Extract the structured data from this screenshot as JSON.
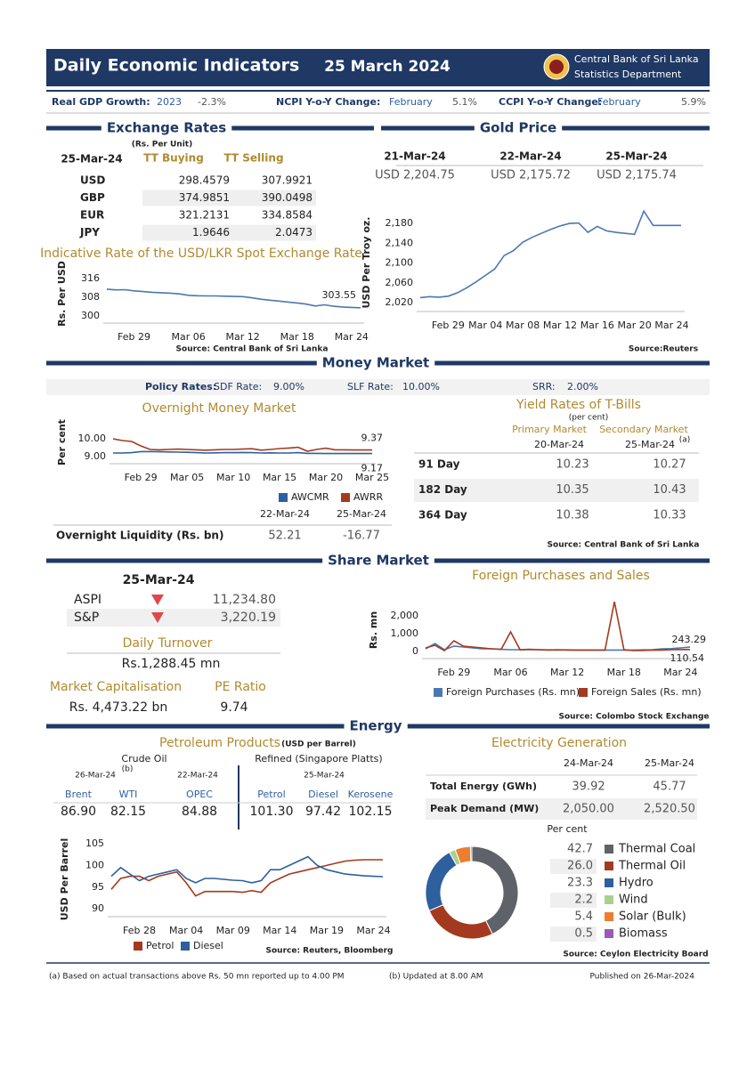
{
  "header": {
    "title": "Daily Economic Indicators",
    "date": "25 March 2024",
    "org": [
      "Central Bank of Sri Lanka",
      "Statistics Department"
    ]
  },
  "summary": [
    {
      "label": "Real GDP Growth:",
      "period": "2023",
      "value": "-2.3%"
    },
    {
      "label": "NCPI Y-o-Y Change:",
      "period": "February",
      "value": "5.1%"
    },
    {
      "label": "CCPI Y-o-Y Change:",
      "period": "February",
      "value": "5.9%"
    }
  ],
  "exchange": {
    "title": "Exchange Rates",
    "unit": "(Rs. Per Unit)",
    "date": "25-Mar-24",
    "columns": [
      "TT Buying",
      "TT Selling"
    ],
    "rows": [
      [
        "USD",
        "298.4579",
        "307.9921"
      ],
      [
        "GBP",
        "374.9851",
        "390.0498"
      ],
      [
        "EUR",
        "321.2131",
        "334.8584"
      ],
      [
        "JPY",
        "1.9646",
        "2.0473"
      ]
    ],
    "chart": {
      "type": "line",
      "title": "Indicative Rate of the USD/LKR Spot Exchange Rate",
      "y_label": "Rs. Per USD",
      "categories": [
        null,
        null,
        null,
        "Feb 29",
        null,
        null,
        null,
        null,
        null,
        "Mar 06",
        null,
        null,
        null,
        null,
        null,
        "Mar 12",
        null,
        null,
        null,
        null,
        null,
        "Mar 18",
        null,
        null,
        null,
        null,
        null,
        "Mar 24",
        null
      ],
      "series": [
        {
          "color": "#4a78b0",
          "values": [
            311.5,
            311.2,
            311.3,
            310.8,
            310.5,
            310.2,
            310.0,
            309.8,
            309.5,
            308.9,
            308.7,
            308.6,
            308.6,
            308.5,
            308.4,
            308.3,
            307.8,
            307.2,
            306.8,
            306.4,
            306.0,
            305.6,
            305.1,
            304.3,
            304.8,
            304.2,
            303.9,
            303.7,
            303.55
          ]
        }
      ],
      "ylim": [
        297,
        321
      ],
      "yticks": [
        300,
        308,
        316
      ],
      "source": "Source: Central Bank of Sri Lanka"
    }
  },
  "gold": {
    "title": "Gold Price",
    "dates": [
      "21-Mar-24",
      "22-Mar-24",
      "25-Mar-24"
    ],
    "values": [
      "USD 2,204.75",
      "USD 2,175.72",
      "USD 2,175.74"
    ],
    "chart": {
      "type": "line",
      "y_label": "USD Per Troy oz.",
      "categories": [
        null,
        null,
        null,
        "Feb 29",
        null,
        null,
        null,
        "Mar 04",
        null,
        null,
        null,
        "Mar 08",
        null,
        null,
        null,
        "Mar 12",
        null,
        null,
        null,
        "Mar 16",
        null,
        null,
        null,
        "Mar 20",
        null,
        null,
        null,
        "Mar 24",
        null
      ],
      "series": [
        {
          "color": "#4a78b0",
          "values": [
            2030,
            2032,
            2031,
            2033,
            2040,
            2050,
            2062,
            2075,
            2088,
            2115,
            2125,
            2142,
            2152,
            2160,
            2168,
            2175,
            2180,
            2181,
            2162,
            2174,
            2165,
            2162,
            2160,
            2158,
            2205,
            2176,
            2176,
            2176,
            2176
          ]
        }
      ],
      "ylim": [
        2002,
        2209
      ],
      "yticks": [
        {
          "value": 2020,
          "label": "2,020"
        },
        {
          "value": 2060,
          "label": "2,060"
        },
        {
          "value": 2100,
          "label": "2,100"
        },
        {
          "value": 2140,
          "label": "2,140"
        },
        {
          "value": 2180,
          "label": "2,180"
        }
      ],
      "source": "Source:Reuters"
    }
  },
  "money": {
    "title": "Money Market",
    "policy": {
      "label": "Policy Rates:",
      "items": [
        [
          "SDF Rate:",
          "9.00%"
        ],
        [
          "SLF Rate:",
          "10.00%"
        ],
        [
          "SRR:",
          "2.00%"
        ]
      ]
    },
    "overnight": {
      "chart": {
        "type": "line",
        "title": "Overnight Money Market",
        "y_label": "Per cent",
        "categories": [
          null,
          null,
          null,
          "Feb 29",
          null,
          null,
          null,
          null,
          "Mar 05",
          null,
          null,
          null,
          null,
          "Mar 10",
          null,
          null,
          null,
          null,
          "Mar 15",
          null,
          null,
          null,
          null,
          "Mar 20",
          null,
          null,
          null,
          null,
          "Mar 25"
        ],
        "series": [
          {
            "name": "AWCMR",
            "color": "#2e5f9e",
            "values": [
              9.2,
              9.2,
              9.22,
              9.28,
              9.28,
              9.27,
              9.26,
              9.25,
              9.24,
              9.22,
              9.2,
              9.21,
              9.22,
              9.22,
              9.23,
              9.22,
              9.2,
              9.21,
              9.2,
              9.2,
              9.22,
              9.18,
              9.18,
              9.17,
              9.17,
              9.17,
              9.17,
              9.17,
              9.17
            ]
          },
          {
            "name": "AWRR",
            "color": "#a33a1f",
            "values": [
              10.0,
              9.9,
              9.85,
              9.6,
              9.4,
              9.38,
              9.4,
              9.42,
              9.4,
              9.38,
              9.36,
              9.38,
              9.4,
              9.4,
              9.42,
              9.44,
              9.36,
              9.4,
              9.45,
              9.48,
              9.52,
              9.3,
              9.4,
              9.47,
              9.38,
              9.38,
              9.37,
              9.37,
              9.37
            ]
          }
        ],
        "ylim": [
          8.6,
          10.6
        ],
        "yticks": [
          {
            "value": 9,
            "label": "9.00"
          },
          {
            "value": 10,
            "label": "10.00"
          }
        ]
      },
      "liquidity": {
        "dates": [
          "22-Mar-24",
          "25-Mar-24"
        ],
        "label": "Overnight Liquidity (Rs. bn)",
        "values": [
          "52.21",
          "-16.77"
        ]
      }
    },
    "tbills": {
      "title": "Yield Rates of T-Bills",
      "unit": "(per cent)",
      "markets": [
        "Primary Market",
        "Secondary Market"
      ],
      "dates": [
        "20-Mar-24",
        "25-Mar-24"
      ],
      "note": "(a)",
      "rows": [
        [
          "91 Day",
          "10.23",
          "10.27"
        ],
        [
          "182 Day",
          "10.35",
          "10.43"
        ],
        [
          "364 Day",
          "10.38",
          "10.33"
        ]
      ],
      "source": "Source: Central Bank of Sri Lanka"
    }
  },
  "share": {
    "title": "Share Market",
    "date": "25-Mar-24",
    "indices": [
      [
        "ASPI",
        "11,234.80"
      ],
      [
        "S&P",
        "3,220.19"
      ]
    ],
    "turnover": {
      "label": "Daily Turnover",
      "value": "Rs.1,288.45 mn"
    },
    "market_cap": {
      "label": "Market Capitalisation",
      "value": "Rs. 4,473.22 bn"
    },
    "pe": {
      "label": "PE Ratio",
      "value": "9.74"
    },
    "foreign": {
      "chart": {
        "type": "line",
        "title": "Foreign Purchases and Sales",
        "y_label": "Rs. mn",
        "categories": [
          null,
          null,
          null,
          "Feb 29",
          null,
          null,
          null,
          null,
          null,
          "Mar 06",
          null,
          null,
          null,
          null,
          null,
          "Mar 12",
          null,
          null,
          null,
          null,
          null,
          "Mar 18",
          null,
          null,
          null,
          null,
          null,
          "Mar 24",
          null
        ],
        "series": [
          {
            "name": "Foreign Purchases (Rs. mn)",
            "color": "#4a78b0",
            "values": [
              150,
              450,
              100,
              300,
              250,
              200,
              150,
              150,
              120,
              100,
              100,
              100,
              100,
              90,
              90,
              90,
              80,
              80,
              80,
              80,
              80,
              80,
              80,
              90,
              100,
              150,
              160,
              200,
              243.29
            ]
          },
          {
            "name": "Foreign Sales (Rs. mn)",
            "color": "#a33a1f",
            "values": [
              200,
              350,
              50,
              600,
              300,
              250,
              200,
              150,
              120,
              1100,
              100,
              120,
              100,
              80,
              90,
              80,
              80,
              80,
              80,
              80,
              2800,
              100,
              50,
              60,
              80,
              80,
              100,
              110,
              110.54
            ]
          }
        ],
        "ylim": [
          -400,
          3100
        ],
        "yticks": [
          0,
          {
            "value": 1000,
            "label": "1,000"
          },
          {
            "value": 2000,
            "label": "2,000"
          }
        ],
        "source": "Source: Colombo Stock Exchange"
      }
    }
  },
  "energy": {
    "title": "Energy",
    "petroleum": {
      "title": "Petroleum Products",
      "unit": "(USD per Barrel)",
      "crude_label": "Crude Oil",
      "crude_note": "(b)",
      "crude_dates": [
        "26-Mar-24",
        "22-Mar-24"
      ],
      "refined_label": "Refined (Singapore Platts)",
      "refined_date": "25-Mar-24",
      "columns": [
        "Brent",
        "WTI",
        "OPEC",
        "Petrol",
        "Diesel",
        "Kerosene"
      ],
      "values": [
        "86.90",
        "82.15",
        "84.88",
        "101.30",
        "97.42",
        "102.15"
      ],
      "chart": {
        "type": "line",
        "y_label": "USD Per Barrel",
        "categories": [
          null,
          null,
          null,
          "Feb 28",
          null,
          null,
          null,
          null,
          "Mar 04",
          null,
          null,
          null,
          null,
          "Mar 09",
          null,
          null,
          null,
          null,
          "Mar 14",
          null,
          null,
          null,
          null,
          "Mar 19",
          null,
          null,
          null,
          null,
          "Mar 24",
          null
        ],
        "series": [
          {
            "name": "Petrol",
            "color": "#a33a1f",
            "values": [
              94.5,
              97,
              97.5,
              97.5,
              96.5,
              97.5,
              98,
              98.5,
              96,
              93,
              94,
              94,
              94,
              94,
              93.8,
              94.2,
              93.8,
              96,
              97,
              98,
              98.5,
              99,
              99.5,
              100,
              100.5,
              101,
              101.2,
              101.3,
              101.3,
              101.3
            ]
          },
          {
            "name": "Diesel",
            "color": "#2e5f9e",
            "values": [
              97.5,
              99.5,
              98,
              96.5,
              97.5,
              98,
              98.5,
              99,
              97,
              96,
              97,
              97,
              96.8,
              96.6,
              96.5,
              96,
              96.5,
              99,
              99,
              100,
              101,
              102,
              100,
              99,
              98.5,
              98,
              97.8,
              97.6,
              97.5,
              97.42
            ]
          }
        ],
        "ylim": [
          88.2,
          105.6
        ],
        "yticks": [
          90,
          95,
          100,
          105
        ],
        "source": "Source: Reuters, Bloomberg"
      }
    },
    "electricity": {
      "title": "Electricity Generation",
      "dates": [
        "24-Mar-24",
        "25-Mar-24"
      ],
      "rows": [
        [
          "Total Energy (GWh)",
          "39.92",
          "45.77"
        ],
        [
          "Peak Demand (MW)",
          "2,050.00",
          "2,520.50"
        ]
      ],
      "chart": {
        "type": "pie",
        "unit": "Per cent",
        "categories": [
          "Thermal Coal",
          "Thermal Oil",
          "Hydro",
          "Wind",
          "Solar (Bulk)",
          "Biomass"
        ],
        "values": [
          42.7,
          26.0,
          23.3,
          2.2,
          5.4,
          0.5
        ],
        "value_labels": [
          "42.7",
          "26.0",
          "23.3",
          "2.2",
          "5.4",
          "0.5"
        ],
        "colors": [
          "#5f6268",
          "#a33a1f",
          "#2e5f9e",
          "#a9d18e",
          "#ed7d31",
          "#9b59b6"
        ],
        "source": "Source: Ceylon Electricity Board"
      }
    }
  },
  "footer": {
    "notes": [
      "(a) Based on actual transactions above Rs. 50 mn reported up to 4.00 PM",
      "(b) Updated at 8.00 AM"
    ],
    "published": "Published on 26-Mar-2024"
  }
}
